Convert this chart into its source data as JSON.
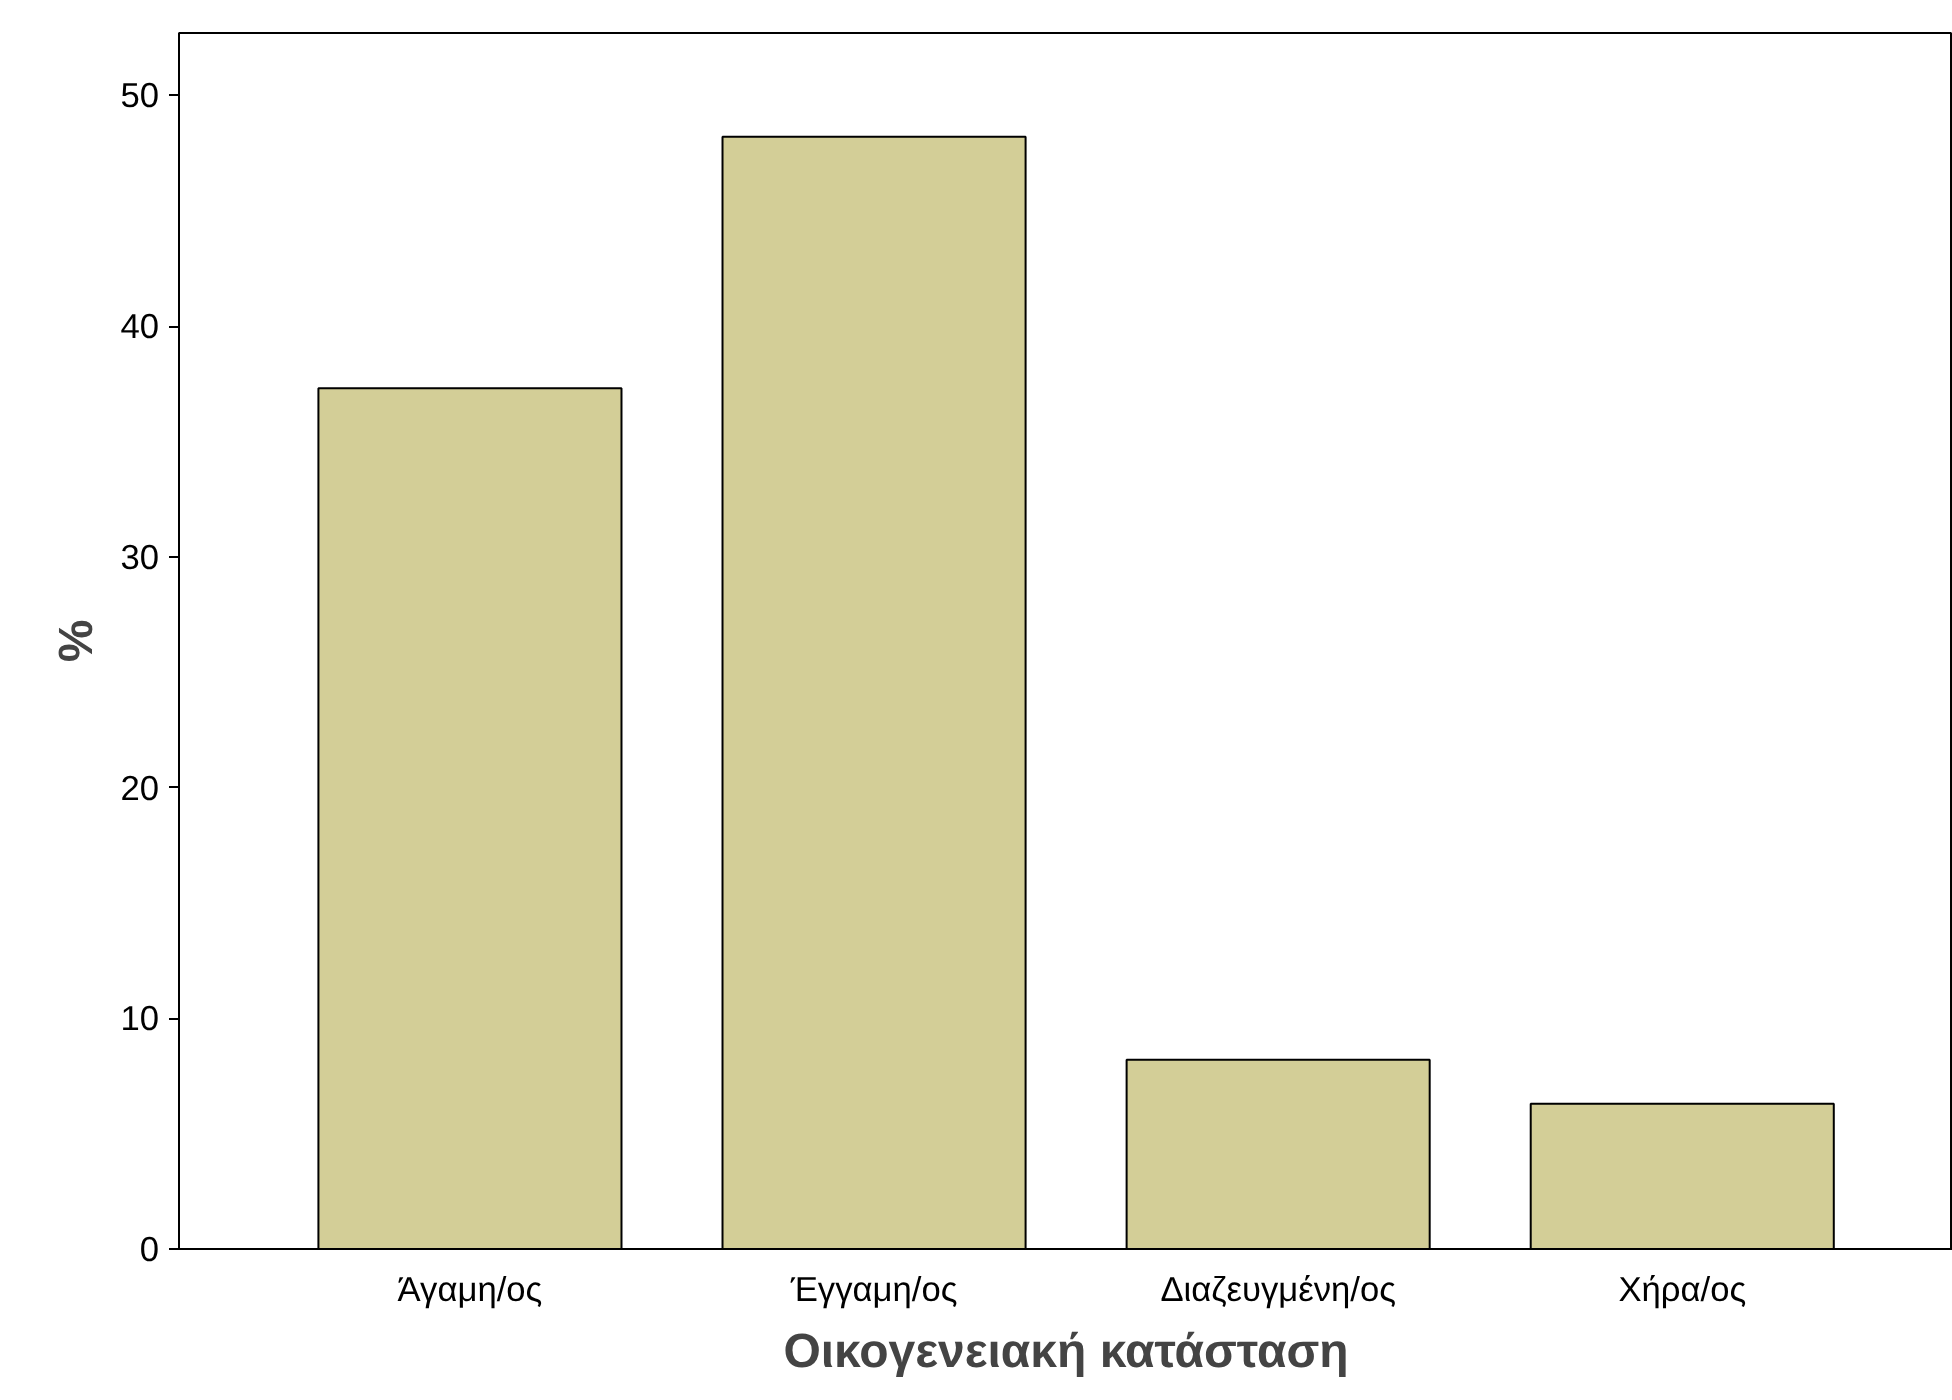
{
  "chart_data": {
    "type": "bar",
    "xlabel": "Οικογενειακή κατάσταση",
    "ylabel": "%",
    "categories": [
      "Άγαμη/ος",
      "Έγγαμη/ος",
      "Διαζευγμένη/ος",
      "Χήρα/ος"
    ],
    "values": [
      37.3,
      48.2,
      8.2,
      6.3
    ],
    "color": "#d3ce97",
    "ylim": [
      0,
      52.7
    ],
    "yticks": [
      0,
      10,
      20,
      30,
      40,
      50
    ],
    "grid": false
  }
}
